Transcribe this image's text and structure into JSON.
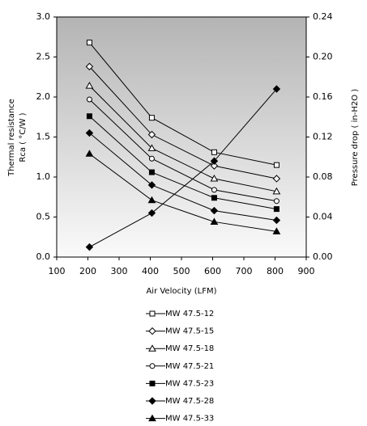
{
  "chart_data": {
    "type": "line",
    "xlabel": "Air Velocity (LFM)",
    "ylabel": [
      "Thermal resistance",
      "Rca ( °C/W )"
    ],
    "y2label": "Pressure drop ( in-H2O )",
    "x": [
      205,
      405,
      605,
      805
    ],
    "xlim": [
      100,
      900
    ],
    "xticks": [
      100,
      200,
      300,
      400,
      500,
      600,
      700,
      800,
      900
    ],
    "ylim": [
      0,
      3
    ],
    "yticks": [
      {
        "value": 0,
        "label": "0.0"
      },
      {
        "value": 0.5,
        "label": "0.5"
      },
      {
        "value": 1,
        "label": "1.0"
      },
      {
        "value": 1.5,
        "label": "1.5"
      },
      {
        "value": 2,
        "label": "2.0"
      },
      {
        "value": 2.5,
        "label": "2.5"
      },
      {
        "value": 3,
        "label": "3.0"
      }
    ],
    "y2lim": [
      0,
      0.24
    ],
    "y2ticks": [
      {
        "value": 0,
        "label": "0.00"
      },
      {
        "value": 0.04,
        "label": "0.04"
      },
      {
        "value": 0.08,
        "label": "0.08"
      },
      {
        "value": 0.12,
        "label": "0.12"
      },
      {
        "value": 0.16,
        "label": "0.16"
      },
      {
        "value": 0.2,
        "label": "0.20"
      },
      {
        "value": 0.24,
        "label": "0.24"
      }
    ],
    "grid": false,
    "series": [
      {
        "name": "MW 47.5-12",
        "color": "#000000",
        "marker": "square-open",
        "values": [
          2.68,
          1.74,
          1.31,
          1.15
        ]
      },
      {
        "name": "MW 47.5-15",
        "color": "#000000",
        "marker": "diamond-open",
        "values": [
          2.38,
          1.53,
          1.14,
          0.98
        ]
      },
      {
        "name": "MW 47.5-18",
        "color": "#000000",
        "marker": "triangle-open",
        "values": [
          2.14,
          1.36,
          0.98,
          0.82
        ]
      },
      {
        "name": "MW 47.5-21",
        "color": "#000000",
        "marker": "circle-open",
        "values": [
          1.97,
          1.23,
          0.84,
          0.7
        ]
      },
      {
        "name": "MW 47.5-23",
        "color": "#000000",
        "marker": "square",
        "values": [
          1.76,
          1.06,
          0.74,
          0.6
        ]
      },
      {
        "name": "MW 47.5-28",
        "color": "#000000",
        "marker": "diamond",
        "values": [
          1.55,
          0.9,
          0.58,
          0.46
        ]
      },
      {
        "name": "MW 47.5-33",
        "color": "#000000",
        "marker": "triangle",
        "values": [
          1.29,
          0.71,
          0.44,
          0.32
        ]
      },
      {
        "color": "#000000",
        "marker": "diamond",
        "axis": "y2",
        "values": [
          0.01,
          0.044,
          0.096,
          0.168
        ]
      }
    ]
  }
}
